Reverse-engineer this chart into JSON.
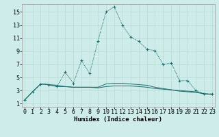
{
  "xlabel": "Humidex (Indice chaleur)",
  "background_color": "#ceecea",
  "grid_color": "#b8d8d4",
  "line_color": "#1a6b6b",
  "x_ticks": [
    0,
    1,
    2,
    3,
    4,
    5,
    6,
    7,
    8,
    9,
    10,
    11,
    12,
    13,
    14,
    15,
    16,
    17,
    18,
    19,
    20,
    21,
    22,
    23
  ],
  "y_ticks": [
    1,
    3,
    5,
    7,
    9,
    11,
    13,
    15
  ],
  "ylim": [
    0.5,
    16.2
  ],
  "xlim": [
    -0.3,
    23.3
  ],
  "series1_x": [
    0,
    1,
    2,
    3,
    4,
    5,
    6,
    7,
    8,
    9,
    10,
    11,
    12,
    13,
    14,
    15,
    16,
    17,
    18,
    19,
    20,
    21,
    22,
    23
  ],
  "series1_y": [
    1.5,
    2.8,
    4.0,
    3.9,
    3.6,
    5.8,
    4.1,
    7.6,
    5.6,
    10.5,
    15.0,
    15.8,
    13.0,
    11.2,
    10.5,
    9.3,
    9.1,
    7.0,
    7.2,
    4.5,
    4.5,
    3.0,
    2.5,
    2.5
  ],
  "series2_x": [
    0,
    1,
    2,
    3,
    4,
    5,
    6,
    7,
    8,
    9,
    10,
    11,
    12,
    13,
    14,
    15,
    16,
    17,
    18,
    19,
    20,
    21,
    22,
    23
  ],
  "series2_y": [
    1.5,
    2.8,
    4.0,
    3.9,
    3.8,
    3.6,
    3.5,
    3.5,
    3.5,
    3.4,
    3.6,
    3.7,
    3.7,
    3.7,
    3.6,
    3.5,
    3.3,
    3.2,
    3.1,
    3.0,
    2.9,
    2.8,
    2.5,
    2.4
  ],
  "series3_x": [
    0,
    1,
    2,
    3,
    4,
    5,
    6,
    7,
    8,
    9,
    10,
    11,
    12,
    13,
    14,
    15,
    16,
    17,
    18,
    19,
    20,
    21,
    22,
    23
  ],
  "series3_y": [
    1.5,
    2.8,
    4.0,
    3.9,
    3.6,
    3.6,
    3.5,
    3.5,
    3.5,
    3.5,
    4.0,
    4.1,
    4.1,
    4.0,
    3.9,
    3.8,
    3.5,
    3.3,
    3.1,
    2.9,
    2.8,
    2.7,
    2.5,
    2.4
  ],
  "xlabel_fontsize": 6.5,
  "tick_fontsize": 6
}
